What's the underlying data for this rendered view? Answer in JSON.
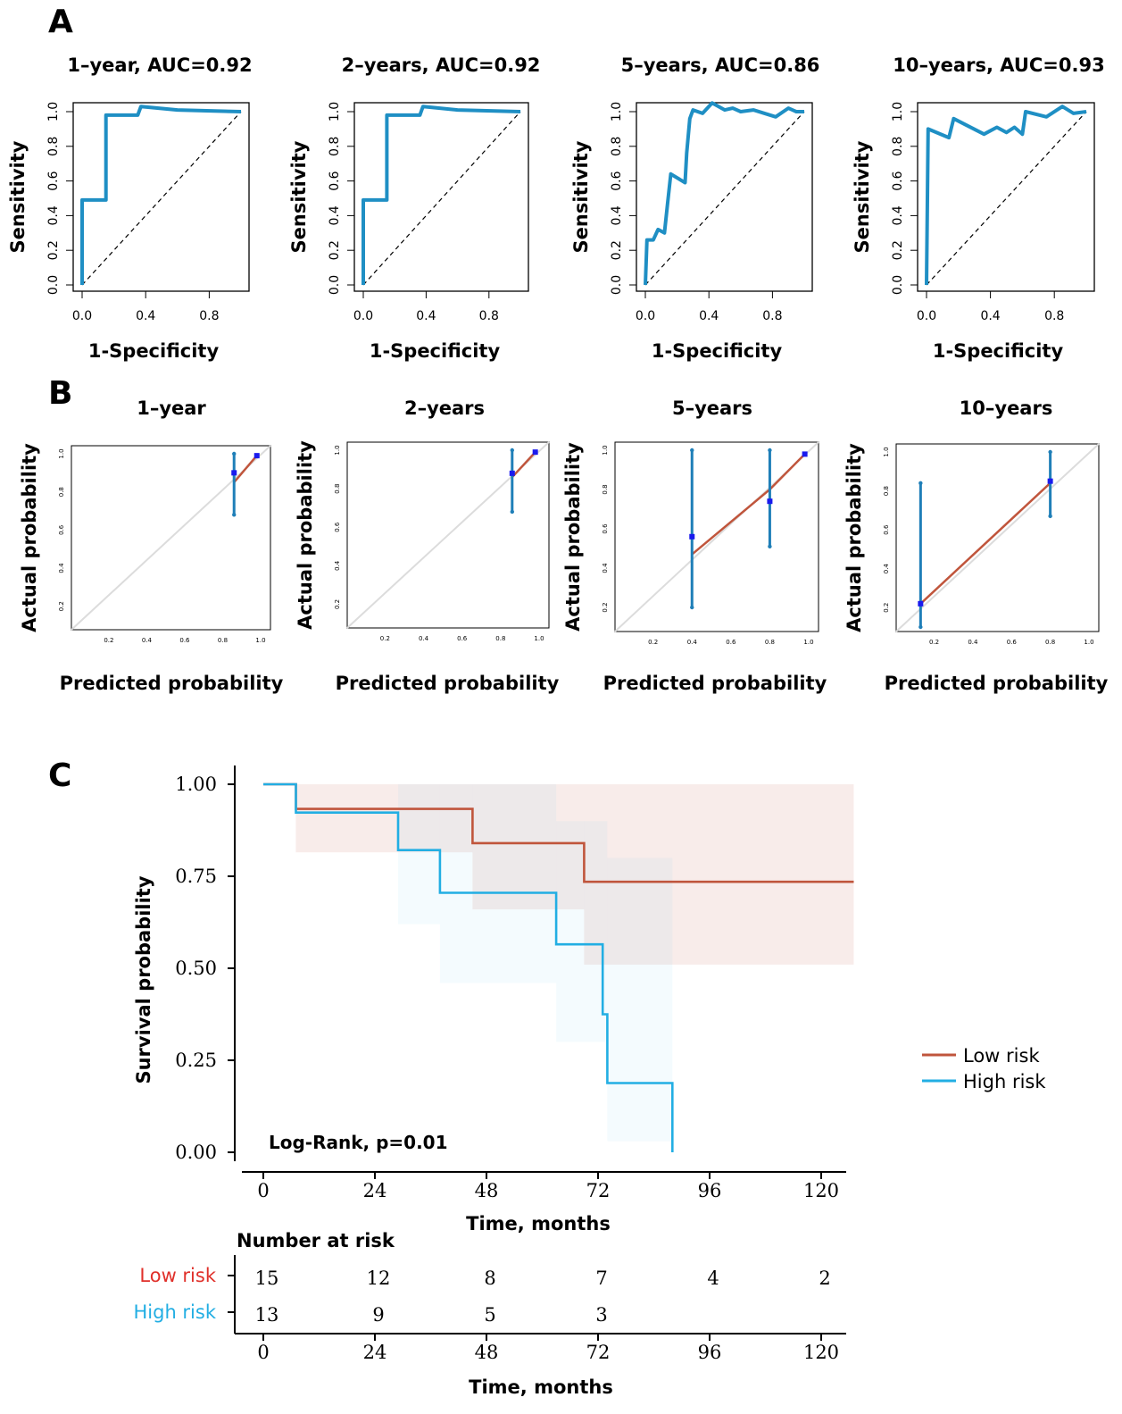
{
  "panels": {
    "a": "A",
    "b": "B",
    "c": "C"
  },
  "colors": {
    "roc_line": "#1f8fc4",
    "low_risk": "#c0553c",
    "high_risk": "#22aee3",
    "low_risk_label": "#e0302a",
    "cal_point": "#1a1aee",
    "cal_bar": "#1f7fb8"
  },
  "chart_data": [
    {
      "type": "line",
      "panel": "A",
      "title": "1–year, AUC=0.92",
      "xlabel": "1-Specificity",
      "ylabel": "Sensitivity",
      "xlim": [
        0,
        1
      ],
      "ylim": [
        0,
        1
      ],
      "xticks": [
        "0.0",
        "0.4",
        "0.8"
      ],
      "yticks": [
        "0.0",
        "0.2",
        "0.4",
        "0.6",
        "0.8",
        "1.0"
      ],
      "series": [
        {
          "x": [
            0,
            0,
            0.15,
            0.15,
            0.35,
            0.37,
            0.6,
            1.0
          ],
          "y": [
            0,
            0.49,
            0.49,
            0.98,
            0.98,
            1.03,
            1.01,
            1.0
          ]
        }
      ],
      "reference_diagonal": true
    },
    {
      "type": "line",
      "panel": "A",
      "title": "2–years, AUC=0.92",
      "xlabel": "1-Specificity",
      "ylabel": "Sensitivity",
      "xlim": [
        0,
        1
      ],
      "ylim": [
        0,
        1
      ],
      "xticks": [
        "0.0",
        "0.4",
        "0.8"
      ],
      "yticks": [
        "0.0",
        "0.2",
        "0.4",
        "0.6",
        "0.8",
        "1.0"
      ],
      "series": [
        {
          "x": [
            0,
            0,
            0.15,
            0.15,
            0.36,
            0.38,
            0.6,
            1.0
          ],
          "y": [
            0,
            0.49,
            0.49,
            0.98,
            0.98,
            1.03,
            1.01,
            1.0
          ]
        }
      ],
      "reference_diagonal": true
    },
    {
      "type": "line",
      "panel": "A",
      "title": "5–years, AUC=0.86",
      "xlabel": "1-Specificity",
      "ylabel": "Sensitivity",
      "xlim": [
        0,
        1
      ],
      "ylim": [
        0,
        1
      ],
      "xticks": [
        "0.0",
        "0.4",
        "0.8"
      ],
      "yticks": [
        "0.0",
        "0.2",
        "0.4",
        "0.6",
        "0.8",
        "1.0"
      ],
      "series": [
        {
          "x": [
            0,
            0.01,
            0.05,
            0.08,
            0.12,
            0.14,
            0.16,
            0.25,
            0.26,
            0.28,
            0.3,
            0.36,
            0.42,
            0.5,
            0.55,
            0.6,
            0.68,
            0.75,
            0.82,
            0.9,
            0.95,
            1.0
          ],
          "y": [
            0,
            0.26,
            0.26,
            0.32,
            0.3,
            0.47,
            0.64,
            0.59,
            0.76,
            0.96,
            1.01,
            0.99,
            1.05,
            1.01,
            1.02,
            1.0,
            1.01,
            0.99,
            0.97,
            1.02,
            1.0,
            1.0
          ]
        }
      ],
      "reference_diagonal": true
    },
    {
      "type": "line",
      "panel": "A",
      "title": "10–years, AUC=0.93",
      "xlabel": "1-Specificity",
      "ylabel": "Sensitivity",
      "xlim": [
        0,
        1
      ],
      "ylim": [
        0,
        1
      ],
      "xticks": [
        "0.0",
        "0.4",
        "0.8"
      ],
      "yticks": [
        "0.0",
        "0.2",
        "0.4",
        "0.6",
        "0.8",
        "1.0"
      ],
      "series": [
        {
          "x": [
            0,
            0.01,
            0.14,
            0.17,
            0.36,
            0.44,
            0.5,
            0.55,
            0.6,
            0.62,
            0.75,
            0.85,
            0.92,
            1.0
          ],
          "y": [
            0,
            0.9,
            0.85,
            0.96,
            0.87,
            0.91,
            0.88,
            0.91,
            0.87,
            1.0,
            0.97,
            1.03,
            0.99,
            1.0
          ]
        }
      ],
      "reference_diagonal": true
    },
    {
      "type": "scatter",
      "panel": "B",
      "title": "1–year",
      "xlabel": "Predicted probability",
      "ylabel": "Actual probability",
      "xlim": [
        0.05,
        1.0
      ],
      "ylim": [
        0.1,
        1.0
      ],
      "xticks": [
        "0.2",
        "0.4",
        "0.6",
        "0.8",
        "1.0"
      ],
      "yticks": [
        "0.2",
        "0.4",
        "0.6",
        "0.8",
        "1.0"
      ],
      "points": [
        {
          "x": 0.86,
          "y": 0.9,
          "lo": 0.68,
          "hi": 1.0
        },
        {
          "x": 0.98,
          "y": 0.99,
          "lo": 0.99,
          "hi": 0.99
        }
      ],
      "fit_line": [
        [
          0.86,
          0.85
        ],
        [
          0.98,
          0.99
        ]
      ]
    },
    {
      "type": "scatter",
      "panel": "B",
      "title": "2–years",
      "xlabel": "Predicted probability",
      "ylabel": "Actual probability",
      "xlim": [
        0.05,
        1.0
      ],
      "ylim": [
        0.1,
        1.0
      ],
      "xticks": [
        "0.2",
        "0.4",
        "0.6",
        "0.8",
        "1.0"
      ],
      "yticks": [
        "0.2",
        "0.4",
        "0.6",
        "0.8",
        "1.0"
      ],
      "points": [
        {
          "x": 0.86,
          "y": 0.88,
          "lo": 0.68,
          "hi": 1.0
        },
        {
          "x": 0.98,
          "y": 0.99,
          "lo": 0.99,
          "hi": 0.99
        }
      ],
      "fit_line": [
        [
          0.86,
          0.86
        ],
        [
          0.98,
          0.99
        ]
      ]
    },
    {
      "type": "scatter",
      "panel": "B",
      "title": "5–years",
      "xlabel": "Predicted probability",
      "ylabel": "Actual probability",
      "xlim": [
        0.05,
        1.0
      ],
      "ylim": [
        0.1,
        1.0
      ],
      "xticks": [
        "0.2",
        "0.4",
        "0.6",
        "0.8",
        "1.0"
      ],
      "yticks": [
        "0.2",
        "0.4",
        "0.6",
        "0.8",
        "1.0"
      ],
      "points": [
        {
          "x": 0.4,
          "y": 0.56,
          "lo": 0.2,
          "hi": 1.0
        },
        {
          "x": 0.8,
          "y": 0.74,
          "lo": 0.51,
          "hi": 1.0
        },
        {
          "x": 0.98,
          "y": 0.98,
          "lo": 0.98,
          "hi": 0.98
        }
      ],
      "fit_line": [
        [
          0.4,
          0.47
        ],
        [
          0.8,
          0.8
        ],
        [
          0.98,
          0.98
        ]
      ]
    },
    {
      "type": "scatter",
      "panel": "B",
      "title": "10–years",
      "xlabel": "Predicted probability",
      "ylabel": "Actual probability",
      "xlim": [
        0.05,
        1.0
      ],
      "ylim": [
        0.1,
        1.0
      ],
      "xticks": [
        "0.2",
        "0.4",
        "0.6",
        "0.8",
        "1.0"
      ],
      "yticks": [
        "0.2",
        "0.4",
        "0.6",
        "0.8",
        "1.0"
      ],
      "points": [
        {
          "x": 0.13,
          "y": 0.22,
          "lo": 0.1,
          "hi": 0.84
        },
        {
          "x": 0.8,
          "y": 0.85,
          "lo": 0.67,
          "hi": 1.0
        }
      ],
      "fit_line": [
        [
          0.13,
          0.22
        ],
        [
          0.8,
          0.84
        ]
      ]
    },
    {
      "type": "line",
      "panel": "C",
      "title": "",
      "xlabel": "Time, months",
      "ylabel": "Survival probability",
      "xlim": [
        -5,
        127
      ],
      "ylim": [
        -0.02,
        1.05
      ],
      "xticks": [
        "0",
        "24",
        "48",
        "72",
        "96",
        "120"
      ],
      "yticks": [
        "0.00",
        "0.25",
        "0.50",
        "0.75",
        "1.00"
      ],
      "annotation": "Log-Rank, p=0.01",
      "legend": [
        "Low risk",
        "High risk"
      ],
      "legend_position": "right",
      "series": [
        {
          "name": "Low risk",
          "x": [
            0,
            7,
            7,
            45,
            45,
            69,
            69,
            127
          ],
          "y": [
            1.0,
            1.0,
            0.933,
            0.933,
            0.84,
            0.84,
            0.735,
            0.735
          ],
          "ci": [
            [
              7,
              45,
              0.815,
              1.0
            ],
            [
              45,
              69,
              0.66,
              1.0
            ],
            [
              69,
              127,
              0.51,
              1.0
            ]
          ]
        },
        {
          "name": "High risk",
          "x": [
            0,
            7,
            7,
            29,
            29,
            38,
            38,
            63,
            63,
            73,
            73,
            74,
            74,
            88,
            88
          ],
          "y": [
            1.0,
            1.0,
            0.923,
            0.923,
            0.821,
            0.821,
            0.705,
            0.705,
            0.565,
            0.565,
            0.375,
            0.375,
            0.188,
            0.188,
            0.0
          ],
          "ci": [
            [
              29,
              38,
              0.62,
              1.0
            ],
            [
              38,
              63,
              0.46,
              1.0
            ],
            [
              63,
              74,
              0.3,
              0.9
            ],
            [
              74,
              88,
              0.03,
              0.8
            ]
          ]
        }
      ]
    },
    {
      "type": "table",
      "panel": "C",
      "title": "Number at risk",
      "xlabel": "Time, months",
      "columns": [
        "0",
        "24",
        "48",
        "72",
        "96",
        "120"
      ],
      "rows": [
        {
          "name": "Low risk",
          "values": [
            "15",
            "12",
            "8",
            "7",
            "4",
            "2"
          ]
        },
        {
          "name": "High risk",
          "values": [
            "13",
            "9",
            "5",
            "3",
            "",
            ""
          ]
        }
      ]
    }
  ]
}
